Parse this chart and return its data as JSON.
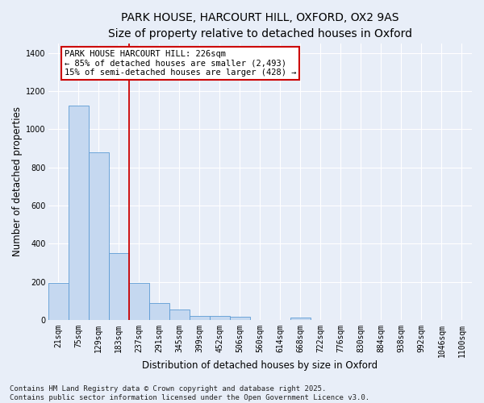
{
  "title_line1": "PARK HOUSE, HARCOURT HILL, OXFORD, OX2 9AS",
  "title_line2": "Size of property relative to detached houses in Oxford",
  "xlabel": "Distribution of detached houses by size in Oxford",
  "ylabel": "Number of detached properties",
  "categories": [
    "21sqm",
    "75sqm",
    "129sqm",
    "183sqm",
    "237sqm",
    "291sqm",
    "345sqm",
    "399sqm",
    "452sqm",
    "506sqm",
    "560sqm",
    "614sqm",
    "668sqm",
    "722sqm",
    "776sqm",
    "830sqm",
    "884sqm",
    "938sqm",
    "992sqm",
    "1046sqm",
    "1100sqm"
  ],
  "values": [
    195,
    1125,
    880,
    350,
    195,
    90,
    55,
    22,
    20,
    15,
    0,
    0,
    12,
    0,
    0,
    0,
    0,
    0,
    0,
    0,
    0
  ],
  "bar_color": "#c5d8f0",
  "bar_edge_color": "#5b9bd5",
  "annotation_line1": "PARK HOUSE HARCOURT HILL: 226sqm",
  "annotation_line2": "← 85% of detached houses are smaller (2,493)",
  "annotation_line3": "15% of semi-detached houses are larger (428) →",
  "annotation_box_color": "#ffffff",
  "annotation_box_edge": "#cc0000",
  "vline_color": "#cc0000",
  "vline_x": 3.5,
  "ylim": [
    0,
    1450
  ],
  "yticks": [
    0,
    200,
    400,
    600,
    800,
    1000,
    1200,
    1400
  ],
  "footer_text": "Contains HM Land Registry data © Crown copyright and database right 2025.\nContains public sector information licensed under the Open Government Licence v3.0.",
  "bg_color": "#e8eef8",
  "grid_color": "#ffffff",
  "title_fontsize": 10,
  "subtitle_fontsize": 9,
  "axis_label_fontsize": 8.5,
  "tick_fontsize": 7,
  "annotation_fontsize": 7.5,
  "footer_fontsize": 6.5
}
